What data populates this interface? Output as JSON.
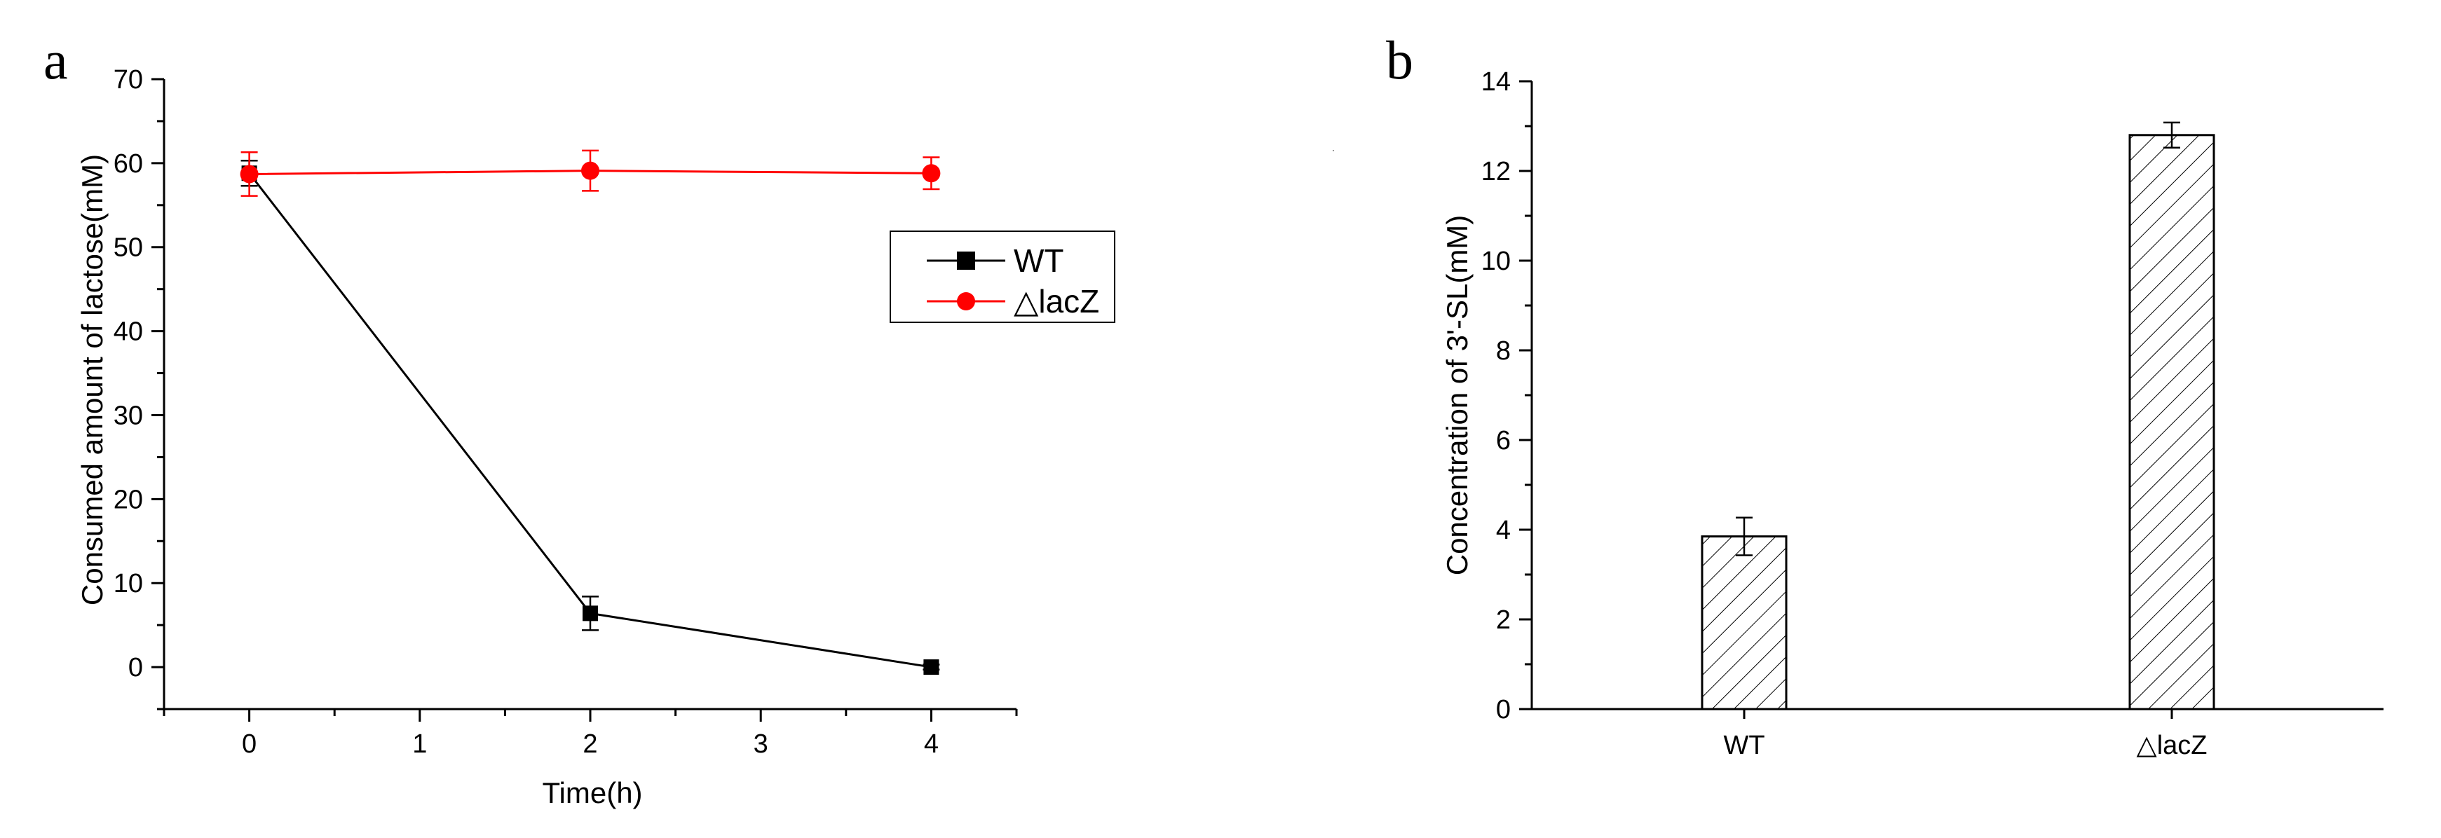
{
  "chart_data": [
    {
      "panel_label": "a",
      "type": "line",
      "xlabel": "Time(h)",
      "ylabel": "Consumed amount of lactose(mM)",
      "xlim": [
        -0.5,
        4.5
      ],
      "ylim": [
        -5,
        70
      ],
      "x_ticks": [
        "0",
        "1",
        "2",
        "3",
        "4"
      ],
      "y_ticks": [
        "0",
        "10",
        "20",
        "30",
        "40",
        "50",
        "60",
        "70"
      ],
      "legend_position": "upper-right",
      "series": [
        {
          "name": "WT",
          "color": "#000000",
          "marker": "square",
          "x": [
            0,
            2,
            4
          ],
          "values": [
            58.8,
            6.4,
            0
          ],
          "errors": [
            1.5,
            2.0,
            0.3
          ]
        },
        {
          "name": "△lacZ",
          "color": "#ff0000",
          "marker": "circle",
          "x": [
            0,
            2,
            4
          ],
          "values": [
            58.7,
            59.1,
            58.8
          ],
          "errors": [
            2.6,
            2.4,
            1.9
          ]
        }
      ]
    },
    {
      "panel_label": "b",
      "type": "bar",
      "xlabel": "",
      "ylabel": "Concentration of 3'-SL(mM)",
      "ylim": [
        0,
        14
      ],
      "y_ticks": [
        "0",
        "2",
        "4",
        "6",
        "8",
        "10",
        "12",
        "14"
      ],
      "categories": [
        "WT",
        "△lacZ"
      ],
      "values": [
        3.85,
        12.8
      ],
      "errors": [
        0.42,
        0.28
      ],
      "fill": "hatched"
    }
  ]
}
